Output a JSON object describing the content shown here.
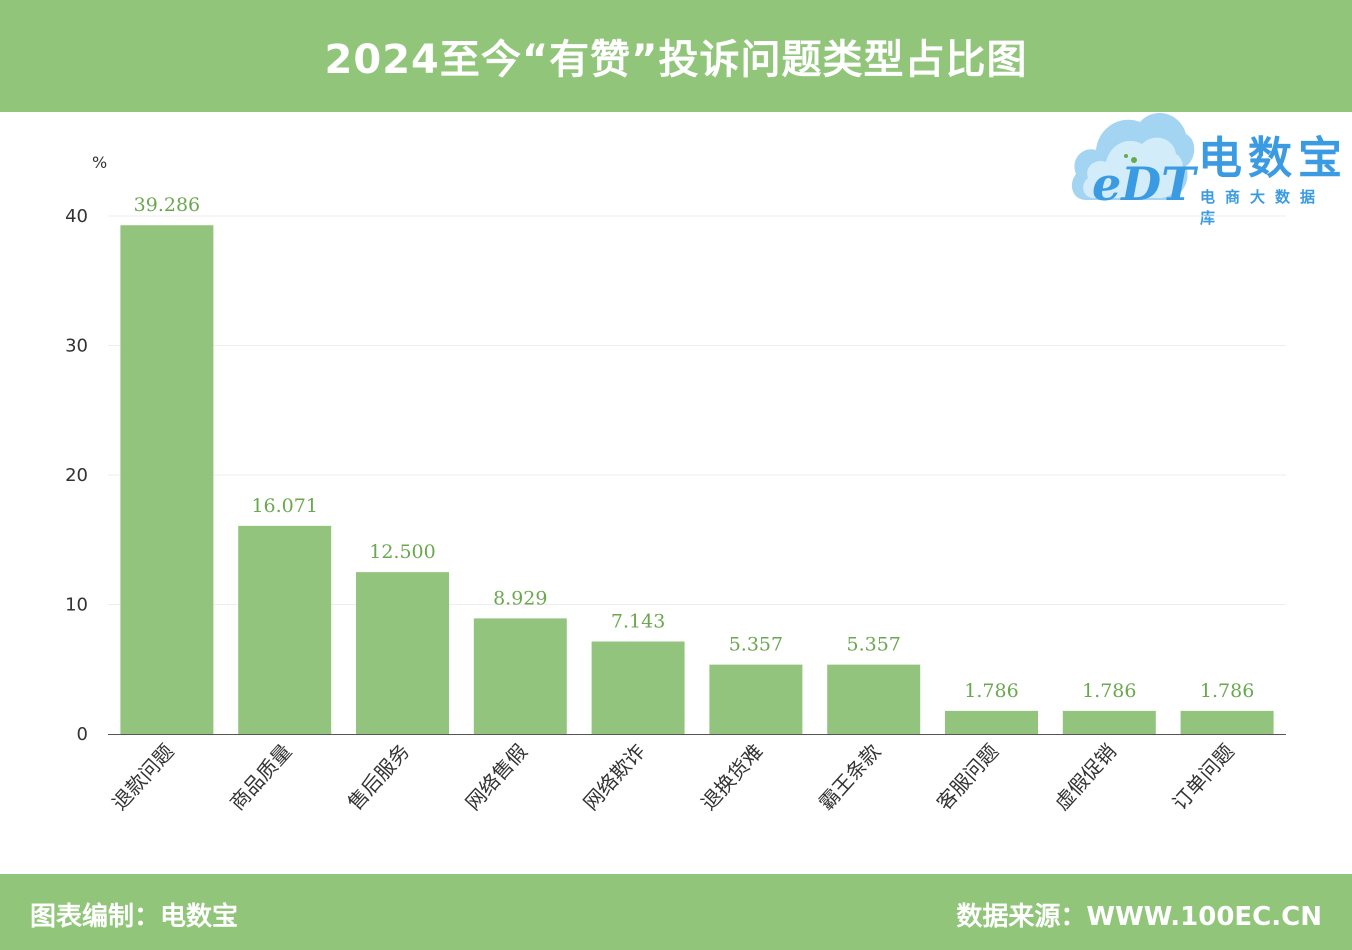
{
  "header": {
    "title": "2024至今“有赞”投诉问题类型占比图"
  },
  "logo": {
    "brand_name": "电数宝",
    "tagline": "电商大数据库",
    "mark_text": "eDT"
  },
  "footer": {
    "left_text": "图表编制：电数宝",
    "right_text": "数据来源：WWW.100EC.CN"
  },
  "colors": {
    "header_bg": "#90c57a",
    "bar": "#93c47d",
    "value_label": "#6aa84f",
    "logo": "#3a9be3"
  },
  "chart_data": {
    "type": "bar",
    "title": "2024至今“有赞”投诉问题类型占比图",
    "ylabel": "%",
    "xlabel": "",
    "ylim": [
      0,
      40
    ],
    "yticks": [
      0,
      10,
      20,
      30,
      40
    ],
    "grid": true,
    "categories": [
      "退款问题",
      "商品质量",
      "售后服务",
      "网络售假",
      "网络欺诈",
      "退换货难",
      "霸王条款",
      "客服问题",
      "虚假促销",
      "订单问题"
    ],
    "values": [
      39.286,
      16.071,
      12.5,
      8.929,
      7.143,
      5.357,
      5.357,
      1.786,
      1.786,
      1.786
    ],
    "value_labels": [
      "39.286",
      "16.071",
      "12.500",
      "8.929",
      "7.143",
      "5.357",
      "5.357",
      "1.786",
      "1.786",
      "1.786"
    ]
  }
}
